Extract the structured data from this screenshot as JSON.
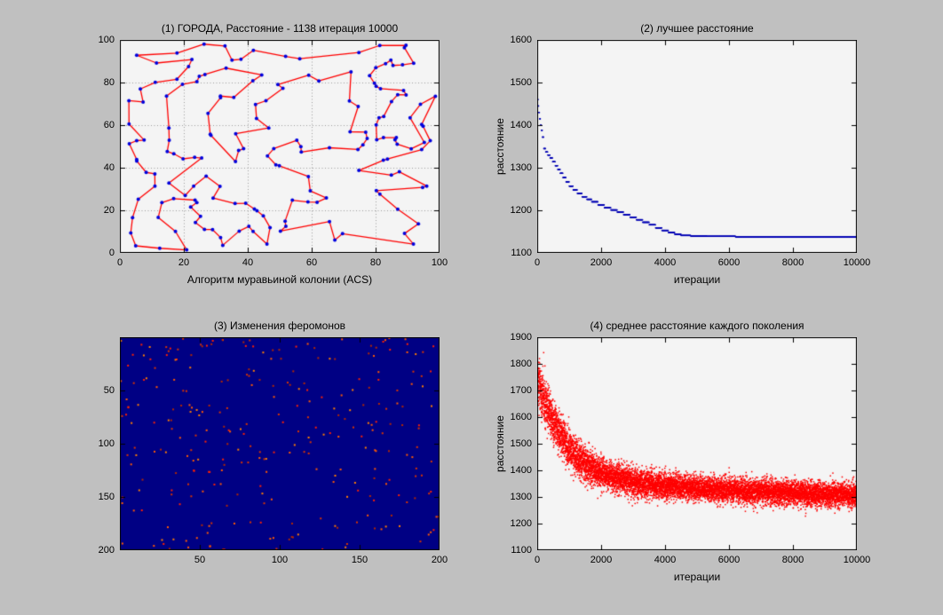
{
  "figure": {
    "background": "#c0c0c0",
    "axes_background": "#f4f4f4",
    "axes_border_color": "#000000",
    "text_color": "#000000"
  },
  "chart_data": [
    {
      "type": "line",
      "subtype": "tsp_tour",
      "title": "(1) ГОРОДА, Расстояние - 1138 итерация 10000",
      "xlabel": "Алгоритм муравьиной колонии (ACS)",
      "ylabel": "",
      "xlim": [
        0,
        100
      ],
      "ylim": [
        0,
        100
      ],
      "xticks": [
        0,
        20,
        40,
        60,
        80,
        100
      ],
      "yticks": [
        0,
        20,
        40,
        60,
        80,
        100
      ],
      "grid": true,
      "line_color": "#ff0000",
      "marker_color": "#0000dd",
      "n_cities": 170,
      "seed": 20,
      "best_distance": 1138,
      "iterations": 10000
    },
    {
      "type": "line",
      "subtype": "step",
      "title": "(2) лучшее расстояние",
      "xlabel": "итерации",
      "ylabel": "расстояние",
      "xlim": [
        0,
        10000
      ],
      "ylim": [
        1100,
        1600
      ],
      "xticks": [
        0,
        2000,
        4000,
        6000,
        8000,
        10000
      ],
      "yticks": [
        1100,
        1200,
        1300,
        1400,
        1500,
        1600
      ],
      "grid": false,
      "line_color": "#0000b4",
      "points": [
        [
          0,
          1482
        ],
        [
          10,
          1460
        ],
        [
          25,
          1445
        ],
        [
          45,
          1430
        ],
        [
          70,
          1415
        ],
        [
          100,
          1400
        ],
        [
          130,
          1388
        ],
        [
          160,
          1372
        ],
        [
          200,
          1345
        ],
        [
          260,
          1337
        ],
        [
          330,
          1330
        ],
        [
          400,
          1323
        ],
        [
          480,
          1314
        ],
        [
          560,
          1305
        ],
        [
          640,
          1296
        ],
        [
          720,
          1287
        ],
        [
          800,
          1277
        ],
        [
          900,
          1267
        ],
        [
          1000,
          1257
        ],
        [
          1120,
          1248
        ],
        [
          1250,
          1240
        ],
        [
          1400,
          1232
        ],
        [
          1550,
          1226
        ],
        [
          1700,
          1220
        ],
        [
          1900,
          1213
        ],
        [
          2100,
          1206
        ],
        [
          2300,
          1201
        ],
        [
          2500,
          1196
        ],
        [
          2700,
          1190
        ],
        [
          2900,
          1184
        ],
        [
          3100,
          1178
        ],
        [
          3300,
          1172
        ],
        [
          3500,
          1166
        ],
        [
          3700,
          1159
        ],
        [
          3900,
          1153
        ],
        [
          4100,
          1148
        ],
        [
          4300,
          1144
        ],
        [
          4500,
          1141
        ],
        [
          4800,
          1140
        ],
        [
          5300,
          1139
        ],
        [
          6200,
          1138
        ],
        [
          10000,
          1138
        ]
      ]
    },
    {
      "type": "heatmap",
      "subtype": "pheromone_image",
      "title": "(3) Изменения феромонов",
      "xlabel": "",
      "ylabel": "",
      "xlim": [
        0,
        200
      ],
      "ylim": [
        0,
        200
      ],
      "y_down": true,
      "xticks": [
        50,
        100,
        150,
        200
      ],
      "yticks": [
        50,
        100,
        150,
        200
      ],
      "grid": false,
      "background": "#000084",
      "dot_colors": [
        "#ff2000",
        "#d83400",
        "#ff5a00",
        "#b42800",
        "#ff7f00"
      ],
      "n_dots": 290,
      "seed": 77
    },
    {
      "type": "scatter",
      "subtype": "noisy_decay",
      "title": "(4) среднее расстояние каждого поколения",
      "xlabel": "итерации",
      "ylabel": "расстояние",
      "xlim": [
        0,
        10000
      ],
      "ylim": [
        1100,
        1900
      ],
      "xticks": [
        0,
        2000,
        4000,
        6000,
        8000,
        10000
      ],
      "yticks": [
        1100,
        1200,
        1300,
        1400,
        1500,
        1600,
        1700,
        1800,
        1900
      ],
      "grid": false,
      "marker_color": "#ff0000",
      "n_points": 10000,
      "seed": 4242,
      "noise_std_start": 48,
      "noise_std_end": 23,
      "trend": [
        [
          0,
          1755
        ],
        [
          150,
          1690
        ],
        [
          300,
          1640
        ],
        [
          500,
          1585
        ],
        [
          700,
          1540
        ],
        [
          1000,
          1480
        ],
        [
          1300,
          1440
        ],
        [
          1600,
          1415
        ],
        [
          2000,
          1390
        ],
        [
          2500,
          1370
        ],
        [
          3000,
          1357
        ],
        [
          3500,
          1348
        ],
        [
          4000,
          1342
        ],
        [
          5000,
          1333
        ],
        [
          6000,
          1326
        ],
        [
          7000,
          1320
        ],
        [
          8000,
          1316
        ],
        [
          9000,
          1311
        ],
        [
          10000,
          1307
        ]
      ]
    }
  ]
}
